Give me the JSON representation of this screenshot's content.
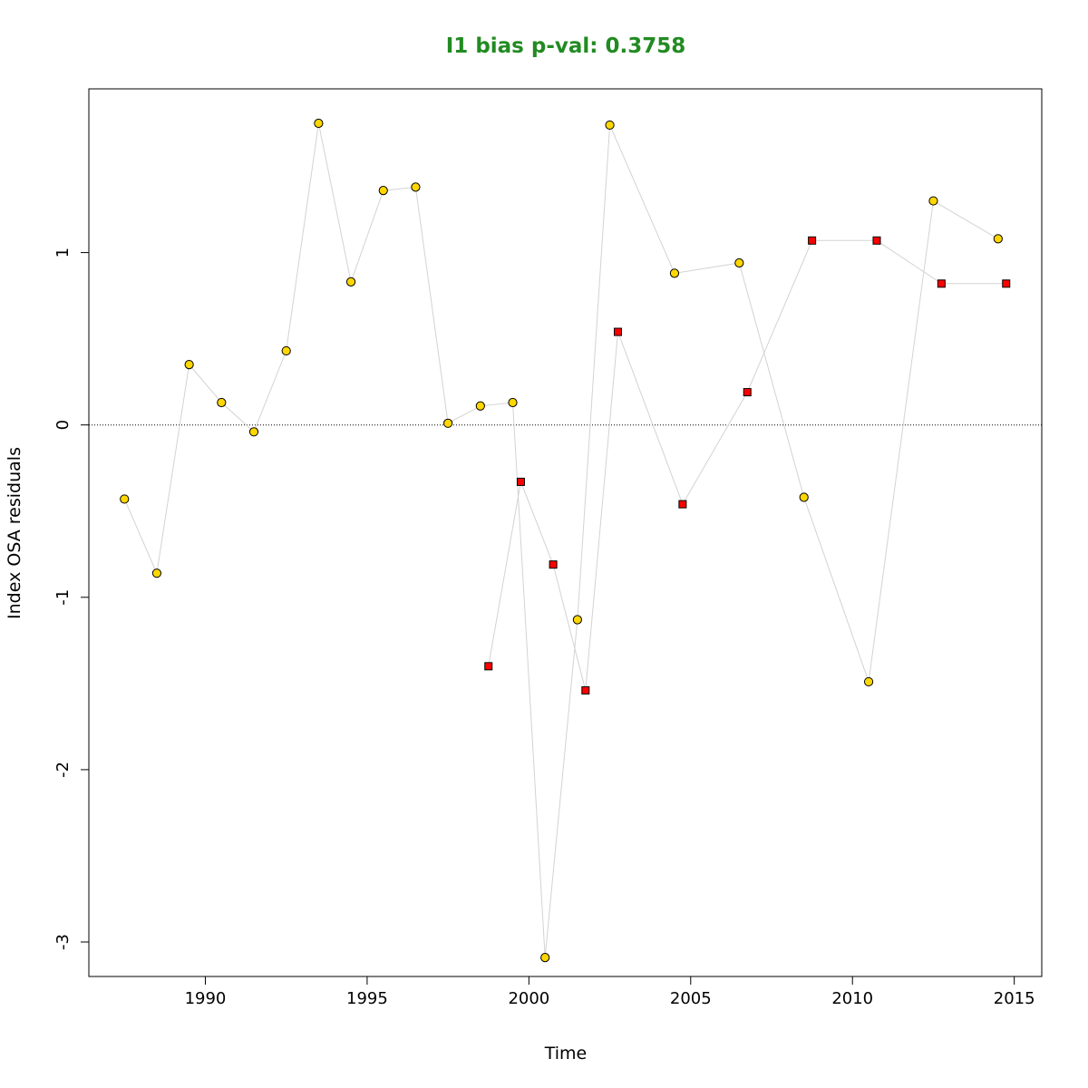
{
  "chart_data": {
    "type": "scatter",
    "title": "I1 bias p-val: 0.3758",
    "title_color": "#228b22",
    "xlabel": "Time",
    "ylabel": "Index OSA residuals",
    "xlim": [
      1986.4,
      2015.85
    ],
    "ylim": [
      -3.2,
      1.95
    ],
    "xticks": [
      1990,
      1995,
      2000,
      2005,
      2010,
      2015
    ],
    "yticks": [
      -3,
      -2,
      -1,
      0,
      1
    ],
    "reference_line": 0,
    "line_color": "#d3d3d3",
    "series": [
      {
        "marker": "circle",
        "color": "#ffd700",
        "points": [
          {
            "x": 1987.5,
            "y": -0.43
          },
          {
            "x": 1988.5,
            "y": -0.86
          },
          {
            "x": 1989.5,
            "y": 0.35
          },
          {
            "x": 1990.5,
            "y": 0.13
          },
          {
            "x": 1991.5,
            "y": -0.04
          },
          {
            "x": 1992.5,
            "y": 0.43
          },
          {
            "x": 1993.5,
            "y": 1.75
          },
          {
            "x": 1994.5,
            "y": 0.83
          },
          {
            "x": 1995.5,
            "y": 1.36
          },
          {
            "x": 1996.5,
            "y": 1.38
          },
          {
            "x": 1997.5,
            "y": 0.01
          },
          {
            "x": 1998.5,
            "y": 0.11
          },
          {
            "x": 1999.5,
            "y": 0.13
          },
          {
            "x": 2000.5,
            "y": -3.09
          },
          {
            "x": 2001.5,
            "y": -1.13
          },
          {
            "x": 2002.5,
            "y": 1.74
          },
          {
            "x": 2004.5,
            "y": 0.88
          },
          {
            "x": 2006.5,
            "y": 0.94
          },
          {
            "x": 2008.5,
            "y": -0.42
          },
          {
            "x": 2010.5,
            "y": -1.49
          },
          {
            "x": 2012.5,
            "y": 1.3
          },
          {
            "x": 2014.5,
            "y": 1.08
          }
        ]
      },
      {
        "marker": "square",
        "color": "#ff0000",
        "points": [
          {
            "x": 1998.75,
            "y": -1.4
          },
          {
            "x": 1999.75,
            "y": -0.33
          },
          {
            "x": 2000.75,
            "y": -0.81
          },
          {
            "x": 2001.75,
            "y": -1.54
          },
          {
            "x": 2002.75,
            "y": 0.54
          },
          {
            "x": 2004.75,
            "y": -0.46
          },
          {
            "x": 2006.75,
            "y": 0.19
          },
          {
            "x": 2008.75,
            "y": 1.07
          },
          {
            "x": 2010.75,
            "y": 1.07
          },
          {
            "x": 2012.75,
            "y": 0.82
          },
          {
            "x": 2014.75,
            "y": 0.82
          }
        ]
      }
    ]
  }
}
